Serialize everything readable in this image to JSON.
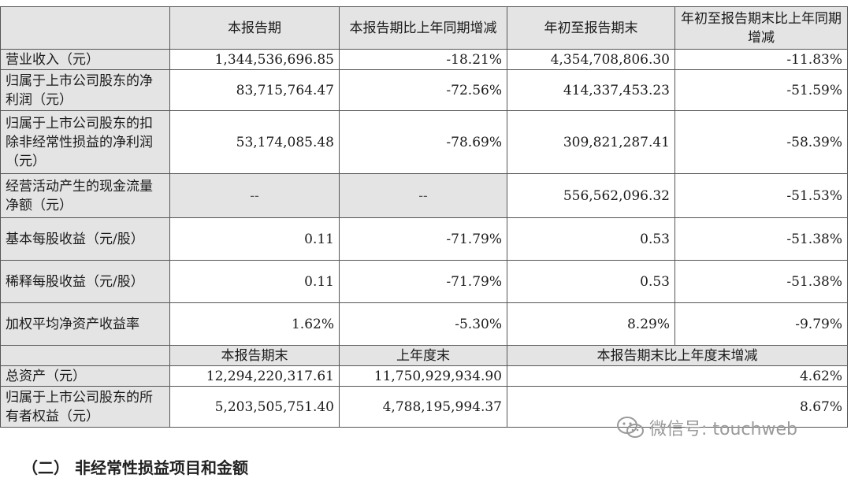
{
  "headers": {
    "h1": "本报告期",
    "h2": "本报告期比上年同期增减",
    "h3": "年初至报告期末",
    "h4": "年初至报告期末比上年同期增减"
  },
  "rows": [
    {
      "label": "营业收入（元）",
      "c1": "1,344,536,696.85",
      "c2": "-18.21%",
      "c3": "4,354,708,806.30",
      "c4": "-11.83%"
    },
    {
      "label": "归属于上市公司股东的净利润（元）",
      "c1": "83,715,764.47",
      "c2": "-72.56%",
      "c3": "414,337,453.23",
      "c4": "-51.59%"
    },
    {
      "label": "归属于上市公司股东的扣除非经常性损益的净利润（元）",
      "c1": "53,174,085.48",
      "c2": "-78.69%",
      "c3": "309,821,287.41",
      "c4": "-58.39%"
    },
    {
      "label": "经营活动产生的现金流量净额（元）",
      "c1": "--",
      "c2": "--",
      "c3": "556,562,096.32",
      "c4": "-51.53%"
    },
    {
      "label": "基本每股收益（元/股）",
      "c1": "0.11",
      "c2": "-71.79%",
      "c3": "0.53",
      "c4": "-51.38%"
    },
    {
      "label": "稀释每股收益（元/股）",
      "c1": "0.11",
      "c2": "-71.79%",
      "c3": "0.53",
      "c4": "-51.38%"
    },
    {
      "label": "加权平均净资产收益率",
      "c1": "1.62%",
      "c2": "-5.30%",
      "c3": "8.29%",
      "c4": "-9.79%"
    }
  ],
  "headers2": {
    "h1": "本报告期末",
    "h2": "上年度末",
    "h3": "本报告期末比上年度末增减"
  },
  "rows2": [
    {
      "label": "总资产（元）",
      "c1": "12,294,220,317.61",
      "c2": "11,750,929,934.90",
      "c3": "4.62%"
    },
    {
      "label": "归属于上市公司股东的所有者权益（元）",
      "c1": "5,203,505,751.40",
      "c2": "4,788,195,994.37",
      "c3": "8.67%"
    }
  ],
  "watermark": {
    "text": "微信号: touchweb",
    "icon": "wechat-icon"
  },
  "footer": "（二） 非经常性损益项目和金额"
}
